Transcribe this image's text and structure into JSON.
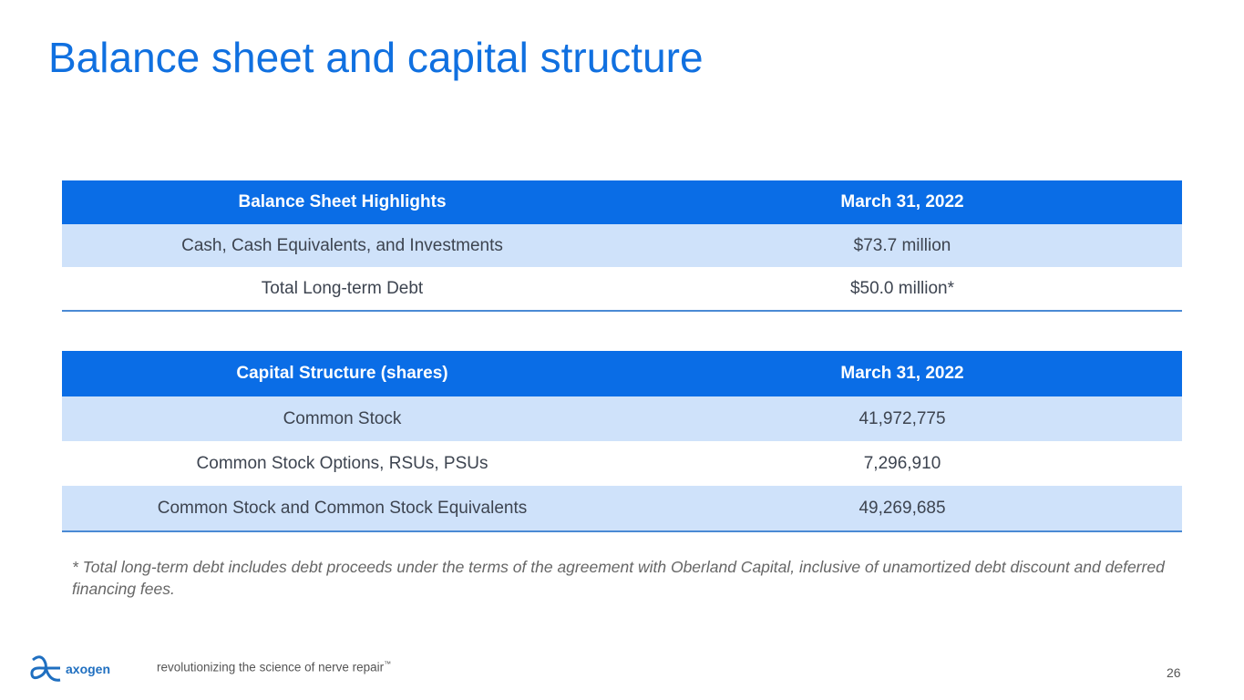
{
  "title": "Balance sheet and capital structure",
  "balance_table": {
    "headers": [
      "Balance Sheet Highlights",
      "March 31, 2022"
    ],
    "rows": [
      [
        "Cash, Cash Equivalents, and Investments",
        "$73.7 million"
      ],
      [
        "Total Long-term Debt",
        "$50.0 million*"
      ]
    ]
  },
  "capital_table": {
    "headers": [
      "Capital Structure (shares)",
      "March 31, 2022"
    ],
    "rows": [
      [
        "Common Stock",
        "41,972,775"
      ],
      [
        "Common Stock Options, RSUs, PSUs",
        "7,296,910"
      ],
      [
        "Common Stock and Common Stock Equivalents",
        "49,269,685"
      ]
    ]
  },
  "footnote": "* Total long-term debt includes debt proceeds under the terms of the agreement with Oberland Capital, inclusive of unamortized debt discount and deferred financing fees.",
  "footer": {
    "logo": "axogen",
    "tagline": "revolutionizing the science of nerve repair",
    "tm": "™",
    "page": "26"
  }
}
